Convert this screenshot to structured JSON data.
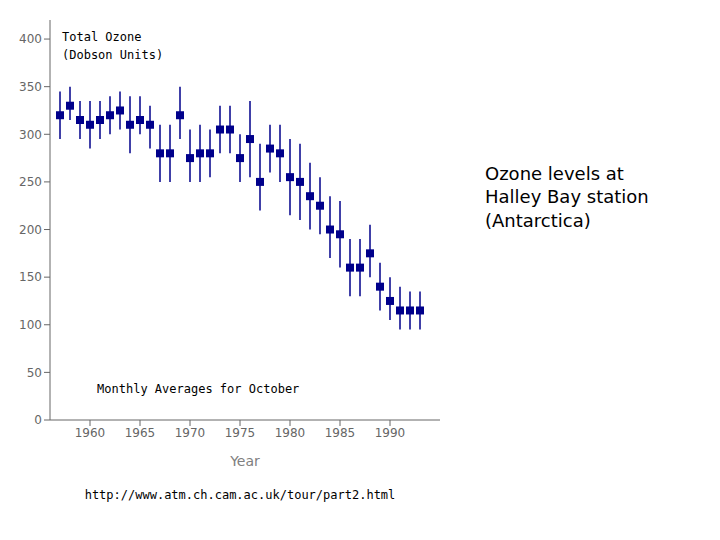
{
  "chart_data": {
    "type": "scatter",
    "x_label": "Year",
    "y_label": "Total Ozone\n(Dobson Units)",
    "subtitle": "Monthly Averages for October",
    "annotation": "Ozone levels at\nHalley Bay station\n(Antarctica)",
    "url": "http://www.atm.ch.cam.ac.uk/tour/part2.html",
    "x": [
      1957,
      1958,
      1959,
      1960,
      1961,
      1962,
      1963,
      1964,
      1965,
      1966,
      1967,
      1968,
      1969,
      1970,
      1971,
      1972,
      1973,
      1974,
      1975,
      1976,
      1977,
      1978,
      1979,
      1980,
      1981,
      1982,
      1983,
      1984,
      1985,
      1986,
      1987,
      1988,
      1989,
      1990,
      1991,
      1992,
      1993
    ],
    "values": [
      320,
      330,
      315,
      310,
      315,
      320,
      325,
      310,
      315,
      310,
      280,
      280,
      320,
      275,
      280,
      280,
      305,
      305,
      275,
      295,
      250,
      285,
      280,
      255,
      250,
      235,
      225,
      200,
      195,
      160,
      160,
      175,
      140,
      125,
      115,
      115,
      115
    ],
    "error_low": [
      25,
      15,
      20,
      25,
      20,
      20,
      20,
      30,
      15,
      25,
      30,
      30,
      25,
      25,
      30,
      25,
      25,
      25,
      25,
      40,
      30,
      25,
      30,
      40,
      40,
      35,
      30,
      30,
      35,
      30,
      30,
      25,
      25,
      20,
      20,
      20,
      20
    ],
    "error_high": [
      25,
      20,
      20,
      25,
      20,
      20,
      20,
      30,
      25,
      20,
      30,
      30,
      30,
      30,
      30,
      25,
      25,
      25,
      25,
      40,
      40,
      25,
      30,
      40,
      40,
      35,
      30,
      35,
      35,
      30,
      30,
      30,
      25,
      25,
      25,
      20,
      20
    ],
    "color": "#00008B",
    "marker": "square",
    "xlim": [
      1956,
      1995
    ],
    "xticks": [
      1960,
      1965,
      1970,
      1975,
      1980,
      1985,
      1990
    ],
    "ylim": [
      0,
      420
    ],
    "yticks": [
      0,
      50,
      100,
      150,
      200,
      250,
      300,
      350,
      400
    ],
    "grid": false
  }
}
